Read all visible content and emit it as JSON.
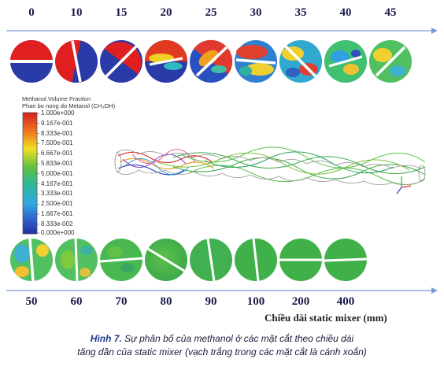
{
  "top_row": {
    "labels": [
      "0",
      "10",
      "15",
      "20",
      "25",
      "30",
      "35",
      "40",
      "45"
    ]
  },
  "bottom_row": {
    "labels": [
      "50",
      "60",
      "70",
      "80",
      "90",
      "100",
      "200",
      "400"
    ]
  },
  "legend": {
    "title": "Methanol.Volume Fraction",
    "subtitle": "Phan bo nong do Metanol (CH₃OH)",
    "values": [
      "1.000e+000",
      "9.167e-001",
      "8.333e-001",
      "7.500e-001",
      "6.667e-001",
      "5.833e-001",
      "5.000e-001",
      "4.167e-001",
      "3.333e-001",
      "2.500e-001",
      "1.667e-001",
      "8.333e-002",
      "0.000e+000"
    ]
  },
  "x_axis_title": "Chiều dài static mixer (mm)",
  "caption": {
    "figure_label": "Hình 7.",
    "line1": " Sự phân bố của methanol ở các mặt cắt theo chiều dài",
    "line2": "tăng dần của static mixer (vạch trắng trong các mặt cắt là cánh xoắn)"
  },
  "colors": {
    "axis": "#7b9bd6",
    "high": "#e02020",
    "low": "#2a3aa8",
    "mid": "#3aaa4a"
  }
}
